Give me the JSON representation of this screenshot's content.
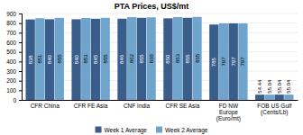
{
  "chart_data": {
    "type": "bar",
    "title": "PTA Prices, US$/mt",
    "categories": [
      "CFR China",
      "CFR FE Asia",
      "CNF India",
      "CFR SE Asia",
      "FD NW\nEurope\n(Euro/mt)",
      "FOB US Gulf\n(Cents/Lb)"
    ],
    "series": [
      {
        "name": "Week 1 Average",
        "color": "#3A5E8C",
        "values": [
          838,
          840,
          846,
          850,
          785,
          54.44
        ]
      },
      {
        "name": "Week 2 Average",
        "color": "#6FA4CC",
        "values": [
          851,
          853,
          862,
          863,
          797,
          55.04
        ]
      },
      {
        "color": "#3A5E8C",
        "values": [
          840,
          845,
          855,
          855,
          797,
          55.04
        ]
      },
      {
        "color": "#6FA4CC",
        "values": [
          855,
          855,
          860,
          865,
          797,
          55.04
        ]
      }
    ],
    "ylim": [
      0,
      900
    ],
    "yticks": [
      0,
      100,
      200,
      300,
      400,
      500,
      600,
      700,
      800,
      900
    ],
    "grid": true,
    "data_labels": true,
    "legend": "bottom"
  }
}
